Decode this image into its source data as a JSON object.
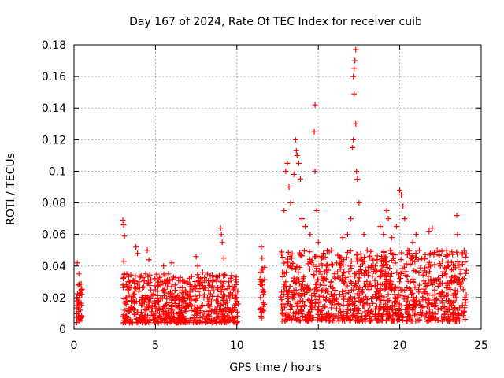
{
  "chart_data": {
    "type": "scatter",
    "title": "Day 167 of 2024, Rate Of TEC Index for receiver cuib",
    "xlabel": "GPS time / hours",
    "ylabel": "ROTI / TECUs",
    "xlim": [
      0,
      25
    ],
    "ylim": [
      0,
      0.18
    ],
    "x_ticks": [
      0,
      5,
      10,
      15,
      20,
      25
    ],
    "x_tick_labels": [
      "0",
      "5",
      "10",
      "15",
      "20",
      "25"
    ],
    "y_ticks": [
      0,
      0.02,
      0.04,
      0.06,
      0.08,
      0.1,
      0.12,
      0.14,
      0.16,
      0.18
    ],
    "y_tick_labels": [
      "0",
      "0.02",
      "0.04",
      "0.06",
      "0.08",
      "0.1",
      "0.12",
      "0.14",
      "0.16",
      "0.18"
    ],
    "grid": true,
    "marker": "+",
    "color": "#ff0000",
    "series": [
      {
        "name": "ROTI",
        "points": [
          [
            0.2,
            0.042
          ],
          [
            0.3,
            0.035
          ],
          [
            0.25,
            0.028
          ],
          [
            0.35,
            0.02
          ],
          [
            0.4,
            0.012
          ],
          [
            0.3,
            0.008
          ],
          [
            0.2,
            0.015
          ],
          [
            0.45,
            0.025
          ],
          [
            0.35,
            0.005
          ],
          [
            0.25,
            0.018
          ],
          [
            3.0,
            0.069
          ],
          [
            3.05,
            0.066
          ],
          [
            3.1,
            0.059
          ],
          [
            3.05,
            0.043
          ],
          [
            3.1,
            0.035
          ],
          [
            3.0,
            0.028
          ],
          [
            3.2,
            0.02
          ],
          [
            3.1,
            0.012
          ],
          [
            3.0,
            0.008
          ],
          [
            3.3,
            0.025
          ],
          [
            3.8,
            0.052
          ],
          [
            3.9,
            0.048
          ],
          [
            4.0,
            0.03
          ],
          [
            4.2,
            0.02
          ],
          [
            4.5,
            0.05
          ],
          [
            4.6,
            0.044
          ],
          [
            4.4,
            0.035
          ],
          [
            4.8,
            0.015
          ],
          [
            5.0,
            0.025
          ],
          [
            5.2,
            0.018
          ],
          [
            5.5,
            0.04
          ],
          [
            5.8,
            0.035
          ],
          [
            6.0,
            0.042
          ],
          [
            6.2,
            0.028
          ],
          [
            6.5,
            0.02
          ],
          [
            6.8,
            0.03
          ],
          [
            7.0,
            0.015
          ],
          [
            7.3,
            0.025
          ],
          [
            7.5,
            0.046
          ],
          [
            7.6,
            0.04
          ],
          [
            7.9,
            0.036
          ],
          [
            8.2,
            0.02
          ],
          [
            8.5,
            0.03
          ],
          [
            8.8,
            0.014
          ],
          [
            9.0,
            0.064
          ],
          [
            9.05,
            0.06
          ],
          [
            9.1,
            0.055
          ],
          [
            9.2,
            0.045
          ],
          [
            9.5,
            0.03
          ],
          [
            9.8,
            0.025
          ],
          [
            10.0,
            0.02
          ],
          [
            9.9,
            0.012
          ],
          [
            9.7,
            0.008
          ],
          [
            9.4,
            0.017
          ],
          [
            9.6,
            0.022
          ],
          [
            8.6,
            0.011
          ],
          [
            6.6,
            0.009
          ],
          [
            5.1,
            0.01
          ],
          [
            4.1,
            0.009
          ],
          [
            3.5,
            0.014
          ],
          [
            11.5,
            0.052
          ],
          [
            11.55,
            0.045
          ],
          [
            11.6,
            0.038
          ],
          [
            11.5,
            0.03
          ],
          [
            11.45,
            0.02
          ],
          [
            11.55,
            0.012
          ],
          [
            11.5,
            0.008
          ],
          [
            11.6,
            0.025
          ],
          [
            12.9,
            0.075
          ],
          [
            13.0,
            0.1
          ],
          [
            13.1,
            0.105
          ],
          [
            13.2,
            0.09
          ],
          [
            13.3,
            0.08
          ],
          [
            13.5,
            0.098
          ],
          [
            13.6,
            0.12
          ],
          [
            13.65,
            0.113
          ],
          [
            13.7,
            0.11
          ],
          [
            13.8,
            0.105
          ],
          [
            13.9,
            0.095
          ],
          [
            14.0,
            0.07
          ],
          [
            14.2,
            0.065
          ],
          [
            14.5,
            0.06
          ],
          [
            14.8,
            0.142
          ],
          [
            14.75,
            0.125
          ],
          [
            14.8,
            0.1
          ],
          [
            14.9,
            0.075
          ],
          [
            15.0,
            0.055
          ],
          [
            15.2,
            0.045
          ],
          [
            15.5,
            0.04
          ],
          [
            15.8,
            0.05
          ],
          [
            16.0,
            0.035
          ],
          [
            16.3,
            0.045
          ],
          [
            16.5,
            0.058
          ],
          [
            16.8,
            0.06
          ],
          [
            17.0,
            0.07
          ],
          [
            17.1,
            0.115
          ],
          [
            17.15,
            0.12
          ],
          [
            17.2,
            0.149
          ],
          [
            17.15,
            0.16
          ],
          [
            17.2,
            0.165
          ],
          [
            17.25,
            0.17
          ],
          [
            17.3,
            0.177
          ],
          [
            17.3,
            0.13
          ],
          [
            17.35,
            0.1
          ],
          [
            17.4,
            0.095
          ],
          [
            17.5,
            0.08
          ],
          [
            17.8,
            0.06
          ],
          [
            18.0,
            0.05
          ],
          [
            18.3,
            0.045
          ],
          [
            18.5,
            0.04
          ],
          [
            18.8,
            0.065
          ],
          [
            19.0,
            0.06
          ],
          [
            19.2,
            0.075
          ],
          [
            19.3,
            0.07
          ],
          [
            19.5,
            0.058
          ],
          [
            19.8,
            0.065
          ],
          [
            20.0,
            0.088
          ],
          [
            20.1,
            0.085
          ],
          [
            20.2,
            0.078
          ],
          [
            20.3,
            0.07
          ],
          [
            20.5,
            0.05
          ],
          [
            20.8,
            0.055
          ],
          [
            21.0,
            0.06
          ],
          [
            21.2,
            0.05
          ],
          [
            21.5,
            0.045
          ],
          [
            21.8,
            0.062
          ],
          [
            22.0,
            0.064
          ],
          [
            22.3,
            0.05
          ],
          [
            22.5,
            0.04
          ],
          [
            22.8,
            0.035
          ],
          [
            23.0,
            0.04
          ],
          [
            23.3,
            0.03
          ],
          [
            23.5,
            0.072
          ],
          [
            23.55,
            0.06
          ],
          [
            23.7,
            0.035
          ],
          [
            23.9,
            0.025
          ],
          [
            24.0,
            0.015
          ],
          [
            23.8,
            0.01
          ],
          [
            13.0,
            0.03
          ],
          [
            13.5,
            0.02
          ],
          [
            14.0,
            0.015
          ],
          [
            14.5,
            0.025
          ],
          [
            15.0,
            0.012
          ],
          [
            15.5,
            0.02
          ],
          [
            16.0,
            0.018
          ],
          [
            16.5,
            0.024
          ],
          [
            17.0,
            0.03
          ],
          [
            17.5,
            0.02
          ],
          [
            18.0,
            0.016
          ],
          [
            18.5,
            0.022
          ],
          [
            19.0,
            0.014
          ],
          [
            19.5,
            0.025
          ],
          [
            20.0,
            0.03
          ],
          [
            20.5,
            0.02
          ],
          [
            21.0,
            0.018
          ],
          [
            21.5,
            0.024
          ],
          [
            22.0,
            0.016
          ],
          [
            22.5,
            0.022
          ],
          [
            23.0,
            0.018
          ],
          [
            13.2,
            0.008
          ],
          [
            14.2,
            0.006
          ],
          [
            16.2,
            0.007
          ],
          [
            18.2,
            0.005
          ],
          [
            20.2,
            0.008
          ],
          [
            22.2,
            0.006
          ],
          [
            23.6,
            0.007
          ],
          [
            12.8,
            0.012
          ],
          [
            12.9,
            0.022
          ]
        ]
      }
    ]
  }
}
